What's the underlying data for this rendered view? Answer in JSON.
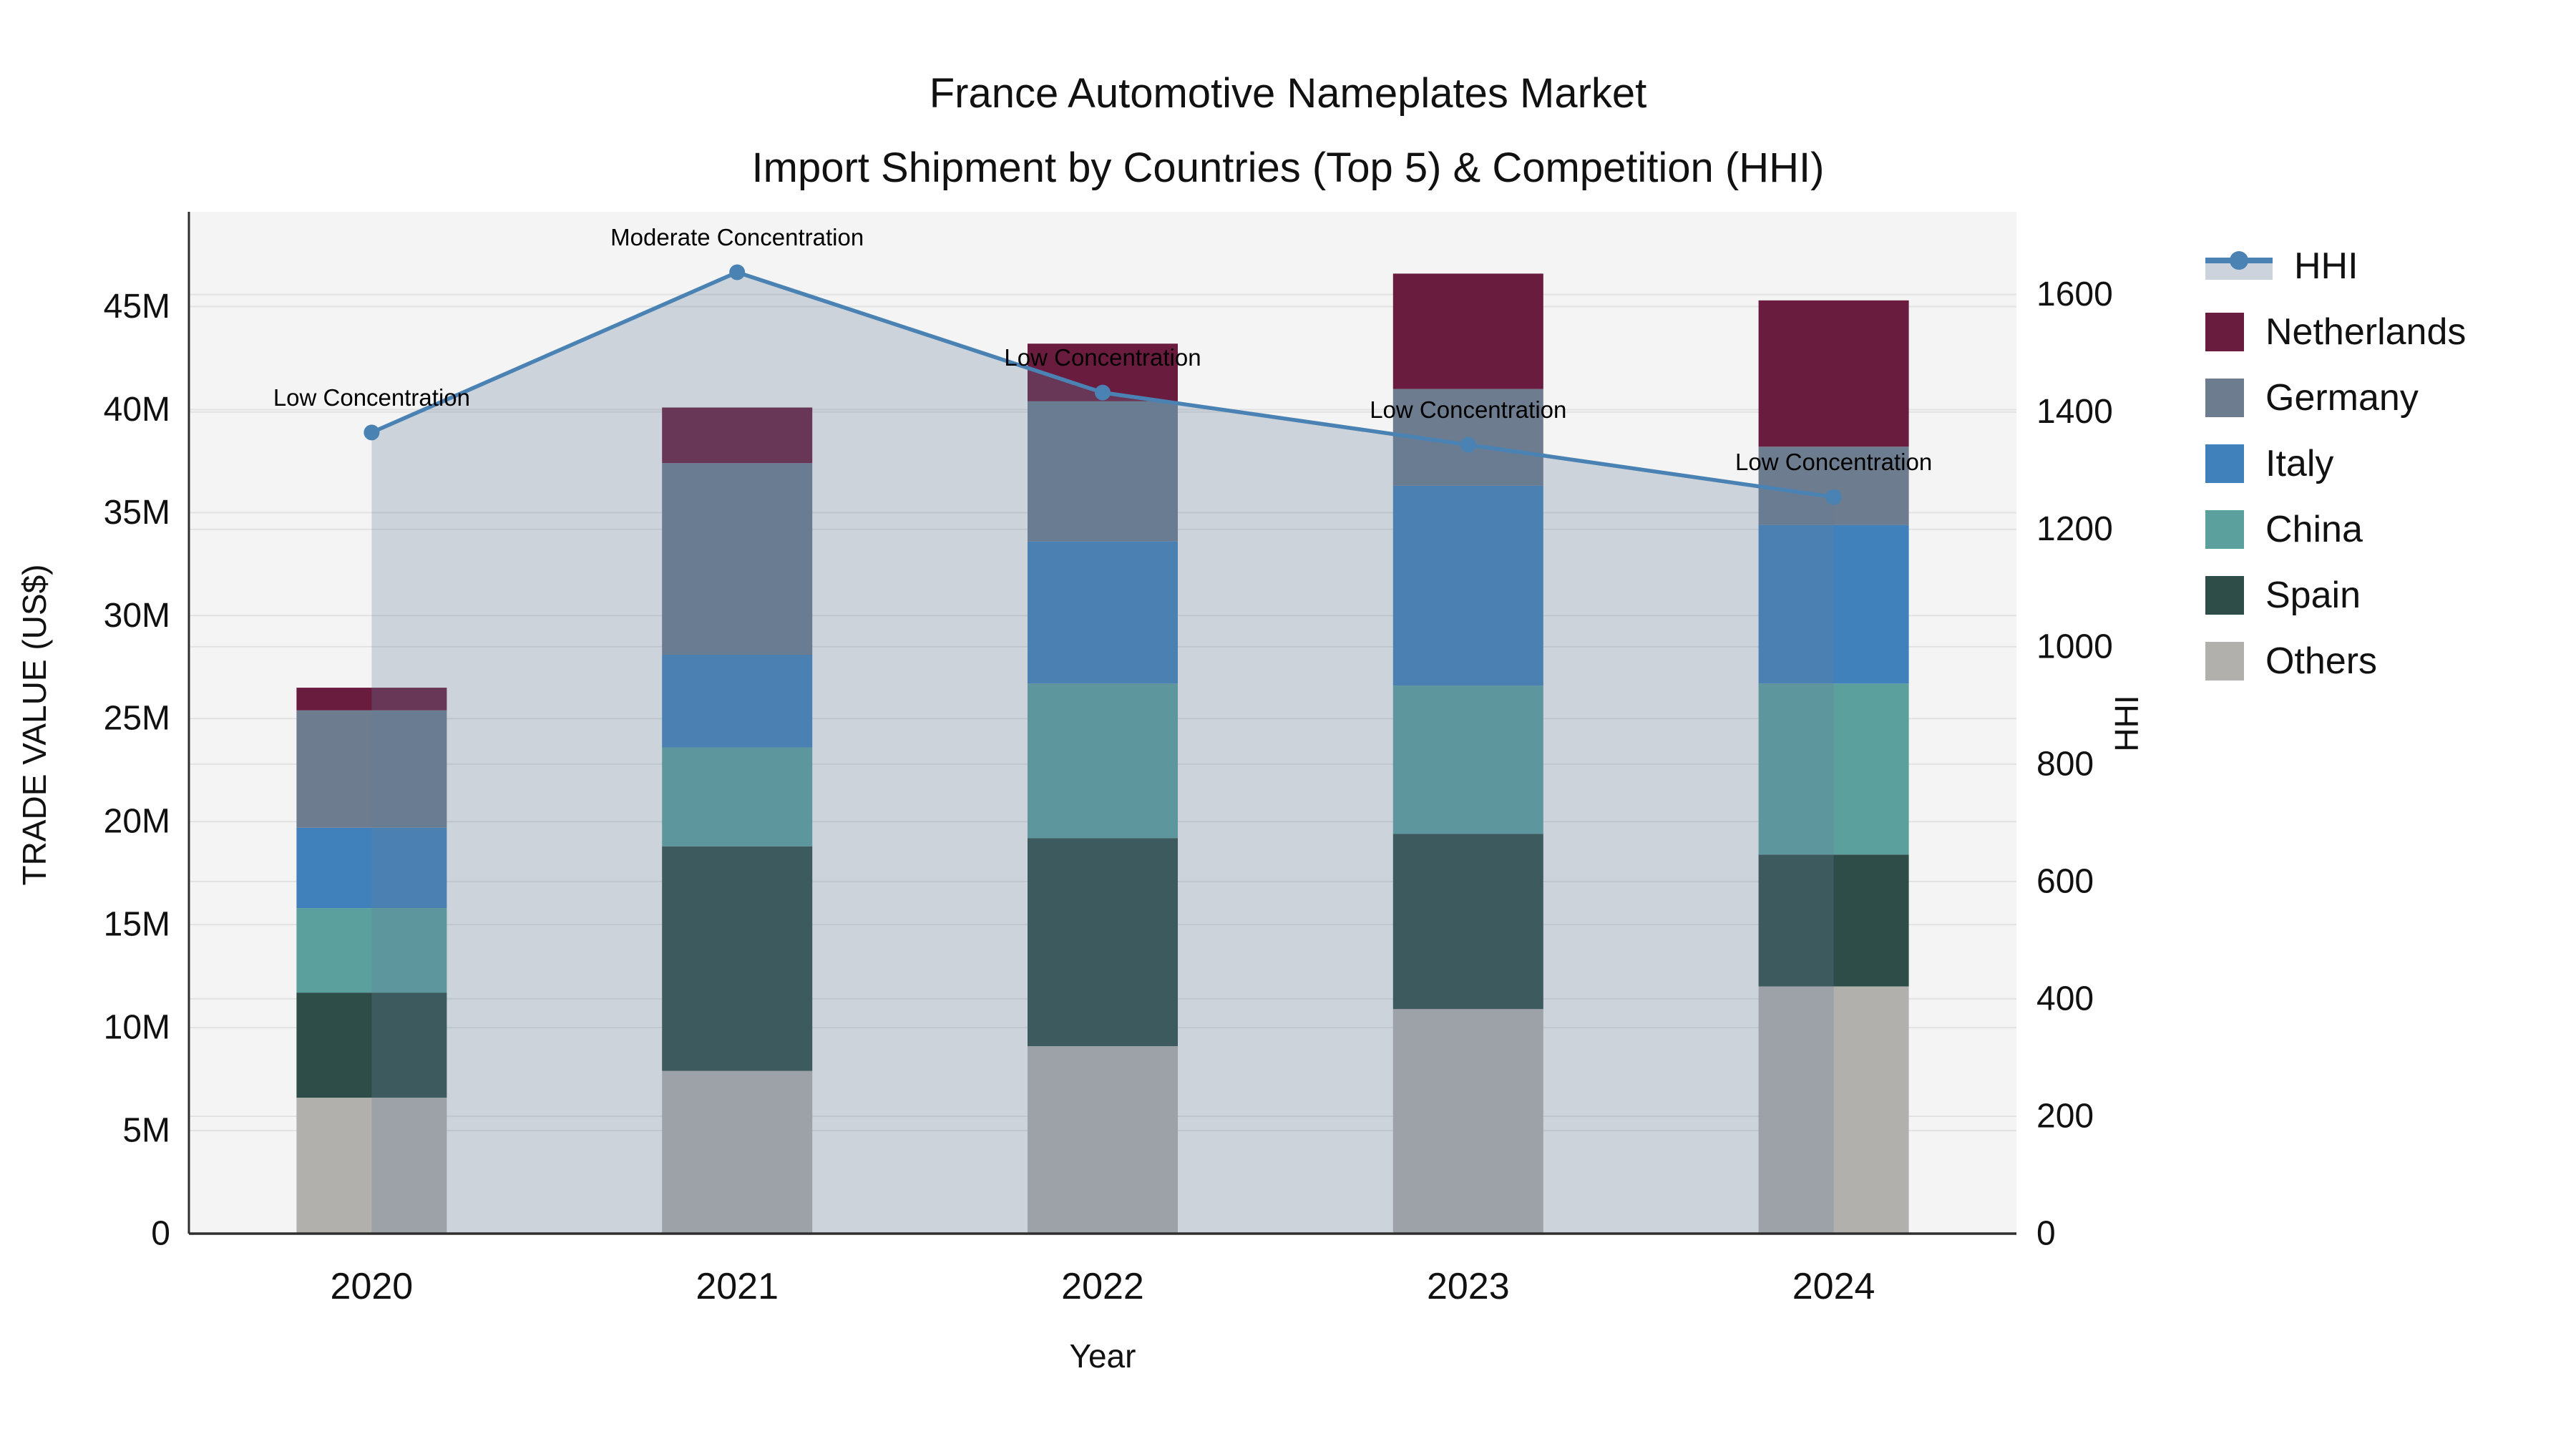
{
  "title": {
    "line1": "France Automotive Nameplates Market",
    "line2": "Import Shipment by Countries (Top 5) & Competition (HHI)"
  },
  "axes": {
    "y_left_label": "TRADE VALUE (US$)",
    "y_right_label": "HHI",
    "x_label": "Year",
    "y_left_ticks": [
      "0",
      "5M",
      "10M",
      "15M",
      "20M",
      "25M",
      "30M",
      "35M",
      "40M",
      "45M"
    ],
    "y_right_ticks": [
      "0",
      "200",
      "400",
      "600",
      "800",
      "1000",
      "1200",
      "1400",
      "1600"
    ]
  },
  "legend": [
    {
      "label": "HHI",
      "type": "line",
      "color": "#4a82b4",
      "swatch_fill": "#ccd3dd"
    },
    {
      "label": "Netherlands",
      "type": "patch",
      "color": "#6a1c3f"
    },
    {
      "label": "Germany",
      "type": "patch",
      "color": "#6d7c8e"
    },
    {
      "label": "Italy",
      "type": "patch",
      "color": "#4181bb"
    },
    {
      "label": "China",
      "type": "patch",
      "color": "#5ba09d"
    },
    {
      "label": "Spain",
      "type": "patch",
      "color": "#2e4d48"
    },
    {
      "label": "Others",
      "type": "patch",
      "color": "#b2b0ad"
    }
  ],
  "annotations": [
    {
      "year": "2020",
      "text": "Low Concentration"
    },
    {
      "year": "2021",
      "text": "Moderate Concentration"
    },
    {
      "year": "2022",
      "text": "Low Concentration"
    },
    {
      "year": "2023",
      "text": "Low Concentration"
    },
    {
      "year": "2024",
      "text": "Low Concentration"
    }
  ],
  "chart_data": {
    "type": "bar",
    "subtype": "stacked-bars-with-line-overlay",
    "categories": [
      "2020",
      "2021",
      "2022",
      "2023",
      "2024"
    ],
    "value_unit": "million US$",
    "series": [
      {
        "name": "Others",
        "color": "#b2b0ad",
        "values": [
          6.6,
          7.9,
          9.1,
          10.9,
          12.0
        ]
      },
      {
        "name": "Spain",
        "color": "#2e4d48",
        "values": [
          5.1,
          10.9,
          10.1,
          8.5,
          6.4
        ]
      },
      {
        "name": "China",
        "color": "#5ba09d",
        "values": [
          4.1,
          4.8,
          7.5,
          7.2,
          8.3
        ]
      },
      {
        "name": "Italy",
        "color": "#4181bb",
        "values": [
          3.9,
          4.5,
          6.9,
          9.7,
          7.7
        ]
      },
      {
        "name": "Germany",
        "color": "#6d7c8e",
        "values": [
          5.7,
          9.3,
          6.8,
          4.7,
          3.8
        ]
      },
      {
        "name": "Netherlands",
        "color": "#6a1c3f",
        "values": [
          1.1,
          2.7,
          2.8,
          5.6,
          7.1
        ]
      }
    ],
    "bar_totals": [
      26.5,
      40.1,
      43.2,
      46.6,
      45.3
    ],
    "hhi": {
      "name": "HHI",
      "color": "#4a82b4",
      "fill_rgba": [
        100,
        125,
        155,
        0.28
      ],
      "values": [
        1365,
        1638,
        1433,
        1344,
        1255
      ]
    },
    "title": "France Automotive Nameplates Market — Import Shipment by Countries (Top 5) & Competition (HHI)",
    "xlabel": "Year",
    "ylabel_left": "TRADE VALUE (US$)",
    "ylabel_right": "HHI",
    "ylim_left": [
      0,
      49.6
    ],
    "ylim_right": [
      0,
      1741
    ],
    "grid": true,
    "legend_position": "right",
    "plot_bg": "#f4f4f4",
    "grid_color": "#e2e2e2",
    "spine_color": "#2e2e2e"
  }
}
